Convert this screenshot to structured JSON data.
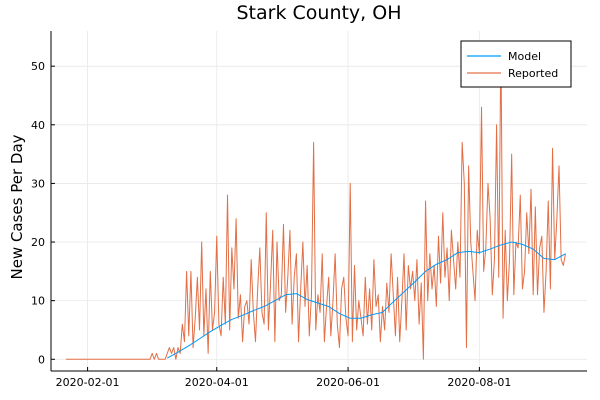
{
  "chart_data": {
    "type": "line",
    "title": "Stark County, OH",
    "xlabel": "",
    "ylabel": "New Cases Per Day",
    "x_axis": {
      "kind": "date",
      "range": [
        "2020-01-15",
        "2020-09-20"
      ],
      "ticks": [
        "2020-02-01",
        "2020-04-01",
        "2020-06-01",
        "2020-08-01"
      ]
    },
    "y_axis": {
      "range": [
        -2,
        56
      ],
      "ticks": [
        0,
        10,
        20,
        30,
        40,
        50
      ]
    },
    "grid": true,
    "legend": "top-right",
    "series": [
      {
        "name": "Model",
        "color": "#009af9",
        "points": [
          [
            "2020-03-09",
            0.2
          ],
          [
            "2020-03-14",
            1.2
          ],
          [
            "2020-03-19",
            2.3
          ],
          [
            "2020-03-24",
            3.5
          ],
          [
            "2020-03-29",
            4.7
          ],
          [
            "2020-04-03",
            5.8
          ],
          [
            "2020-04-08",
            6.8
          ],
          [
            "2020-04-13",
            7.5
          ],
          [
            "2020-04-18",
            8.3
          ],
          [
            "2020-04-23",
            9.0
          ],
          [
            "2020-04-28",
            10.0
          ],
          [
            "2020-05-03",
            11.0
          ],
          [
            "2020-05-08",
            11.2
          ],
          [
            "2020-05-13",
            10.2
          ],
          [
            "2020-05-18",
            9.6
          ],
          [
            "2020-05-23",
            9.0
          ],
          [
            "2020-05-28",
            7.8
          ],
          [
            "2020-06-02",
            7.0
          ],
          [
            "2020-06-07",
            7.0
          ],
          [
            "2020-06-12",
            7.6
          ],
          [
            "2020-06-17",
            8.0
          ],
          [
            "2020-06-22",
            9.8
          ],
          [
            "2020-06-27",
            11.5
          ],
          [
            "2020-07-02",
            13.2
          ],
          [
            "2020-07-07",
            15.0
          ],
          [
            "2020-07-12",
            16.2
          ],
          [
            "2020-07-17",
            17.0
          ],
          [
            "2020-07-22",
            18.2
          ],
          [
            "2020-07-27",
            18.4
          ],
          [
            "2020-08-01",
            18.2
          ],
          [
            "2020-08-06",
            18.8
          ],
          [
            "2020-08-11",
            19.5
          ],
          [
            "2020-08-16",
            20.0
          ],
          [
            "2020-08-21",
            19.6
          ],
          [
            "2020-08-26",
            18.8
          ],
          [
            "2020-08-31",
            17.2
          ],
          [
            "2020-09-05",
            17.0
          ],
          [
            "2020-09-10",
            18.0
          ]
        ]
      },
      {
        "name": "Reported",
        "color": "#e26f46",
        "points": [
          [
            "2020-01-22",
            0
          ],
          [
            "2020-03-01",
            0
          ],
          [
            "2020-03-02",
            1
          ],
          [
            "2020-03-03",
            0
          ],
          [
            "2020-03-04",
            1
          ],
          [
            "2020-03-05",
            0
          ],
          [
            "2020-03-08",
            0
          ],
          [
            "2020-03-09",
            1
          ],
          [
            "2020-03-10",
            2
          ],
          [
            "2020-03-11",
            1
          ],
          [
            "2020-03-12",
            2
          ],
          [
            "2020-03-13",
            0
          ],
          [
            "2020-03-14",
            2
          ],
          [
            "2020-03-15",
            1
          ],
          [
            "2020-03-16",
            6
          ],
          [
            "2020-03-17",
            3
          ],
          [
            "2020-03-18",
            15
          ],
          [
            "2020-03-19",
            4
          ],
          [
            "2020-03-20",
            15
          ],
          [
            "2020-03-21",
            2
          ],
          [
            "2020-03-22",
            7
          ],
          [
            "2020-03-23",
            14
          ],
          [
            "2020-03-24",
            5
          ],
          [
            "2020-03-25",
            20
          ],
          [
            "2020-03-26",
            4
          ],
          [
            "2020-03-27",
            12
          ],
          [
            "2020-03-28",
            1
          ],
          [
            "2020-03-29",
            15
          ],
          [
            "2020-03-30",
            5
          ],
          [
            "2020-03-31",
            8
          ],
          [
            "2020-04-01",
            21
          ],
          [
            "2020-04-02",
            6
          ],
          [
            "2020-04-03",
            4
          ],
          [
            "2020-04-04",
            14
          ],
          [
            "2020-04-05",
            6
          ],
          [
            "2020-04-06",
            28
          ],
          [
            "2020-04-07",
            5
          ],
          [
            "2020-04-08",
            19
          ],
          [
            "2020-04-09",
            12
          ],
          [
            "2020-04-10",
            24
          ],
          [
            "2020-04-11",
            7
          ],
          [
            "2020-04-12",
            11
          ],
          [
            "2020-04-13",
            3
          ],
          [
            "2020-04-14",
            9
          ],
          [
            "2020-04-15",
            10
          ],
          [
            "2020-04-16",
            6
          ],
          [
            "2020-04-17",
            17
          ],
          [
            "2020-04-18",
            8
          ],
          [
            "2020-04-19",
            3
          ],
          [
            "2020-04-20",
            12
          ],
          [
            "2020-04-21",
            19
          ],
          [
            "2020-04-22",
            8
          ],
          [
            "2020-04-23",
            6
          ],
          [
            "2020-04-24",
            25
          ],
          [
            "2020-04-25",
            5
          ],
          [
            "2020-04-26",
            13
          ],
          [
            "2020-04-27",
            22
          ],
          [
            "2020-04-28",
            3
          ],
          [
            "2020-04-29",
            20
          ],
          [
            "2020-04-30",
            10
          ],
          [
            "2020-05-01",
            11
          ],
          [
            "2020-05-02",
            23
          ],
          [
            "2020-05-03",
            8
          ],
          [
            "2020-05-04",
            14
          ],
          [
            "2020-05-05",
            22
          ],
          [
            "2020-05-06",
            6
          ],
          [
            "2020-05-07",
            14
          ],
          [
            "2020-05-08",
            18
          ],
          [
            "2020-05-09",
            3
          ],
          [
            "2020-05-10",
            12
          ],
          [
            "2020-05-11",
            20
          ],
          [
            "2020-05-12",
            9
          ],
          [
            "2020-05-13",
            16
          ],
          [
            "2020-05-14",
            4
          ],
          [
            "2020-05-15",
            11
          ],
          [
            "2020-05-16",
            37
          ],
          [
            "2020-05-17",
            5
          ],
          [
            "2020-05-18",
            11
          ],
          [
            "2020-05-19",
            8
          ],
          [
            "2020-05-20",
            18
          ],
          [
            "2020-05-21",
            3
          ],
          [
            "2020-05-22",
            9
          ],
          [
            "2020-05-23",
            14
          ],
          [
            "2020-05-24",
            4
          ],
          [
            "2020-05-25",
            10
          ],
          [
            "2020-05-26",
            18
          ],
          [
            "2020-05-27",
            6
          ],
          [
            "2020-05-28",
            2
          ],
          [
            "2020-05-29",
            12
          ],
          [
            "2020-05-30",
            14
          ],
          [
            "2020-05-31",
            7
          ],
          [
            "2020-06-01",
            4
          ],
          [
            "2020-06-02",
            30
          ],
          [
            "2020-06-03",
            3
          ],
          [
            "2020-06-04",
            16
          ],
          [
            "2020-06-05",
            5
          ],
          [
            "2020-06-06",
            10
          ],
          [
            "2020-06-07",
            7
          ],
          [
            "2020-06-08",
            4
          ],
          [
            "2020-06-09",
            14
          ],
          [
            "2020-06-10",
            6
          ],
          [
            "2020-06-11",
            12
          ],
          [
            "2020-06-12",
            5
          ],
          [
            "2020-06-13",
            17
          ],
          [
            "2020-06-14",
            9
          ],
          [
            "2020-06-15",
            11
          ],
          [
            "2020-06-16",
            3
          ],
          [
            "2020-06-17",
            9
          ],
          [
            "2020-06-18",
            5
          ],
          [
            "2020-06-19",
            13
          ],
          [
            "2020-06-20",
            8
          ],
          [
            "2020-06-21",
            18
          ],
          [
            "2020-06-22",
            11
          ],
          [
            "2020-06-23",
            4
          ],
          [
            "2020-06-24",
            14
          ],
          [
            "2020-06-25",
            3
          ],
          [
            "2020-06-26",
            10
          ],
          [
            "2020-06-27",
            18
          ],
          [
            "2020-06-28",
            5
          ],
          [
            "2020-06-29",
            16
          ],
          [
            "2020-06-30",
            12
          ],
          [
            "2020-07-01",
            15
          ],
          [
            "2020-07-02",
            10
          ],
          [
            "2020-07-03",
            17
          ],
          [
            "2020-07-04",
            6
          ],
          [
            "2020-07-05",
            13
          ],
          [
            "2020-07-06",
            0
          ],
          [
            "2020-07-07",
            27
          ],
          [
            "2020-07-08",
            10
          ],
          [
            "2020-07-09",
            18
          ],
          [
            "2020-07-10",
            12
          ],
          [
            "2020-07-11",
            16
          ],
          [
            "2020-07-12",
            9
          ],
          [
            "2020-07-13",
            21
          ],
          [
            "2020-07-14",
            13
          ],
          [
            "2020-07-15",
            25
          ],
          [
            "2020-07-16",
            14
          ],
          [
            "2020-07-17",
            19
          ],
          [
            "2020-07-18",
            10
          ],
          [
            "2020-07-19",
            22
          ],
          [
            "2020-07-20",
            17
          ],
          [
            "2020-07-21",
            12
          ],
          [
            "2020-07-22",
            20
          ],
          [
            "2020-07-23",
            14
          ],
          [
            "2020-07-24",
            37
          ],
          [
            "2020-07-25",
            30
          ],
          [
            "2020-07-26",
            2
          ],
          [
            "2020-07-27",
            33
          ],
          [
            "2020-07-28",
            20
          ],
          [
            "2020-07-29",
            15
          ],
          [
            "2020-07-30",
            10
          ],
          [
            "2020-07-31",
            22
          ],
          [
            "2020-08-01",
            18
          ],
          [
            "2020-08-02",
            43
          ],
          [
            "2020-08-03",
            15
          ],
          [
            "2020-08-04",
            19
          ],
          [
            "2020-08-05",
            30
          ],
          [
            "2020-08-06",
            24
          ],
          [
            "2020-08-07",
            11
          ],
          [
            "2020-08-08",
            17
          ],
          [
            "2020-08-09",
            40
          ],
          [
            "2020-08-10",
            14
          ],
          [
            "2020-08-11",
            54
          ],
          [
            "2020-08-12",
            7
          ],
          [
            "2020-08-13",
            22
          ],
          [
            "2020-08-14",
            10
          ],
          [
            "2020-08-15",
            17
          ],
          [
            "2020-08-16",
            35
          ],
          [
            "2020-08-17",
            11
          ],
          [
            "2020-08-18",
            20
          ],
          [
            "2020-08-19",
            19
          ],
          [
            "2020-08-20",
            28
          ],
          [
            "2020-08-21",
            12
          ],
          [
            "2020-08-22",
            15
          ],
          [
            "2020-08-23",
            25
          ],
          [
            "2020-08-24",
            18
          ],
          [
            "2020-08-25",
            29
          ],
          [
            "2020-08-26",
            11
          ],
          [
            "2020-08-27",
            26
          ],
          [
            "2020-08-28",
            11
          ],
          [
            "2020-08-29",
            19
          ],
          [
            "2020-08-30",
            21
          ],
          [
            "2020-08-31",
            8
          ],
          [
            "2020-09-01",
            15
          ],
          [
            "2020-09-02",
            27
          ],
          [
            "2020-09-03",
            12
          ],
          [
            "2020-09-04",
            36
          ],
          [
            "2020-09-05",
            17
          ],
          [
            "2020-09-06",
            24
          ],
          [
            "2020-09-07",
            33
          ],
          [
            "2020-09-08",
            17
          ],
          [
            "2020-09-09",
            16
          ],
          [
            "2020-09-10",
            18
          ]
        ]
      }
    ]
  }
}
